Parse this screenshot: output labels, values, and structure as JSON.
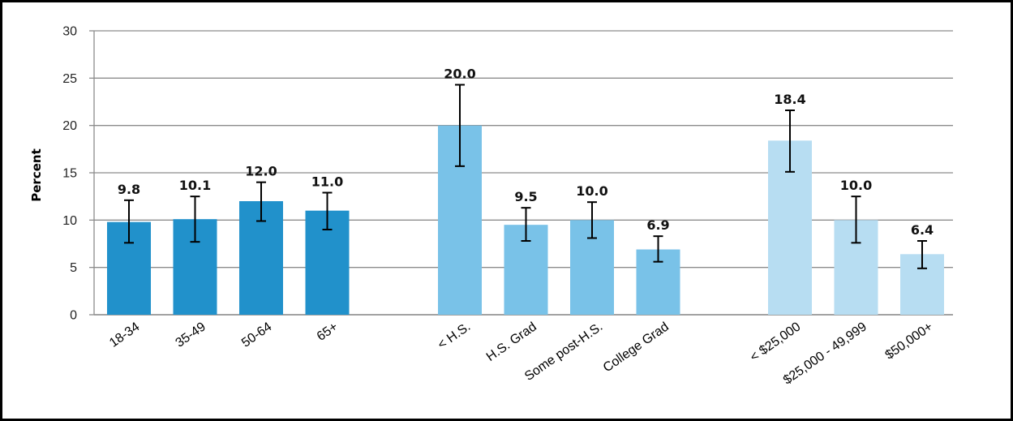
{
  "chart_data": {
    "type": "bar",
    "title": "",
    "xlabel": "",
    "ylabel": "Percent",
    "ylim": [
      0,
      30
    ],
    "yticks": [
      0,
      5,
      10,
      15,
      20,
      25,
      30
    ],
    "grid": true,
    "legend": "none",
    "groups": [
      {
        "color": "#2191cb",
        "bars": [
          {
            "category": "18-34",
            "value": 9.8,
            "label": "9.8",
            "ci": [
              7.6,
              12.1
            ]
          },
          {
            "category": "35-49",
            "value": 10.1,
            "label": "10.1",
            "ci": [
              7.7,
              12.5
            ]
          },
          {
            "category": "50-64",
            "value": 12.0,
            "label": "12.0",
            "ci": [
              9.9,
              14.0
            ]
          },
          {
            "category": "65+",
            "value": 11.0,
            "label": "11.0",
            "ci": [
              9.0,
              12.9
            ]
          }
        ]
      },
      {
        "color": "#79c2e8",
        "bars": [
          {
            "category": "< H.S.",
            "value": 20.0,
            "label": "20.0",
            "ci": [
              15.7,
              24.3
            ]
          },
          {
            "category": "H.S. Grad",
            "value": 9.5,
            "label": "9.5",
            "ci": [
              7.8,
              11.3
            ]
          },
          {
            "category": "Some post-H.S.",
            "value": 10.0,
            "label": "10.0",
            "ci": [
              8.1,
              11.9
            ]
          },
          {
            "category": "College Grad",
            "value": 6.9,
            "label": "6.9",
            "ci": [
              5.6,
              8.3
            ]
          }
        ]
      },
      {
        "color": "#b7ddf2",
        "bars": [
          {
            "category": "< $25,000",
            "value": 18.4,
            "label": "18.4",
            "ci": [
              15.1,
              21.6
            ]
          },
          {
            "category": "$25,000 - 49,999",
            "value": 10.0,
            "label": "10.0",
            "ci": [
              7.6,
              12.5
            ]
          },
          {
            "category": "$50,000+",
            "value": 6.4,
            "label": "6.4",
            "ci": [
              4.9,
              7.8
            ]
          }
        ]
      }
    ]
  }
}
